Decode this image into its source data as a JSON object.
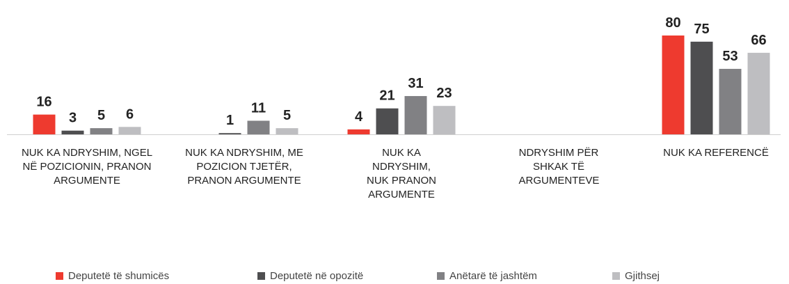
{
  "chart_data": {
    "type": "bar",
    "categories": [
      "NUK KA NDRYSHIM, NGEL NË POZICIONIN, PRANON ARGUMENTE",
      "NUK KA NDRYSHIM, ME POZICION TJETËR, PRANON ARGUMENTE",
      "NUK KA NDRYSHIM, NUK PRANON ARGUMENTE",
      "NDRYSHIM PËR SHKAK TË ARGUMENTEVE",
      "NUK KA REFERENCË"
    ],
    "series": [
      {
        "name": "Deputetë të shumicës",
        "color": "#ee3a2f",
        "values": [
          16,
          null,
          4,
          null,
          80
        ]
      },
      {
        "name": "Deputetë në opozitë",
        "color": "#4e4e50",
        "values": [
          3,
          1,
          21,
          null,
          75
        ]
      },
      {
        "name": "Anëtarë të jashtëm",
        "color": "#818184",
        "values": [
          5,
          11,
          31,
          null,
          53
        ]
      },
      {
        "name": "Gjithsej",
        "color": "#bebec1",
        "values": [
          6,
          5,
          23,
          null,
          66
        ]
      }
    ]
  }
}
